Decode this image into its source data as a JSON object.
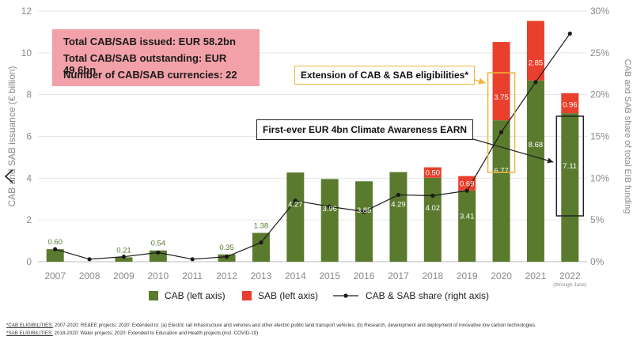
{
  "summary": {
    "line1": "Total CAB/SAB issued: EUR 58.2bn",
    "line2": "Total CAB/SAB outstanding: EUR 49.6bn",
    "line3": "Number of CAB/SAB currencies: 22"
  },
  "annotations": {
    "extension": "Extension of CAB & SAB eligibilities*",
    "earn": "First-ever EUR 4bn Climate Awareness EARN"
  },
  "legend": {
    "cab": "CAB (left axis)",
    "sab": "SAB (left axis)",
    "share": "CAB & SAB share (right axis)"
  },
  "footnotes": {
    "cab_label": "*CAB ELIGIBILITIES:",
    "cab_text": " 2007-2020: RE&EE projects; 2020: Extended to: (a) Electric rail infrastructure and vehicles and other electric public land transport vehicles, (b) Research, development and deployment of innovative low carbon technologies.",
    "sab_label": "*SAB ELIGIBILITIES:",
    "sab_text": " 2018-2020: Water projects; 2020: Extended to Education and Health projects (incl. COVID-19)"
  },
  "colors": {
    "cab": "#5a7a2e",
    "sab": "#e8402c",
    "line": "#1a1a1a",
    "summary_bg": "#f2a1a8",
    "extension_border": "#f0b43a"
  },
  "chart_data": {
    "type": "bar",
    "categories": [
      "2007",
      "2008",
      "2009",
      "2010",
      "2011",
      "2012",
      "2013",
      "2014",
      "2015",
      "2016",
      "2017",
      "2018",
      "2019",
      "2020",
      "2021",
      "2022"
    ],
    "category_note": {
      "2022": "(through June)"
    },
    "series": [
      {
        "name": "CAB (left axis)",
        "axis": "left",
        "values": [
          0.6,
          0,
          0.21,
          0.54,
          0,
          0.35,
          1.38,
          4.27,
          3.96,
          3.85,
          4.29,
          4.02,
          3.41,
          6.77,
          8.68,
          7.11
        ],
        "labels": [
          "0.60",
          "",
          "0.21",
          "0.54",
          "",
          "0.35",
          "1.38",
          "4.27",
          "3.96",
          "3.85",
          "4.29",
          "4.02",
          "3.41",
          "6.77",
          "8.68",
          "7.11"
        ]
      },
      {
        "name": "SAB (left axis)",
        "axis": "left",
        "values": [
          0,
          0,
          0,
          0,
          0,
          0,
          0,
          0,
          0,
          0,
          0,
          0.5,
          0.69,
          3.75,
          2.85,
          0.96
        ],
        "labels": [
          "",
          "",
          "",
          "",
          "",
          "",
          "",
          "",
          "",
          "",
          "",
          "0.50",
          "0.69",
          "3.75",
          "2.85",
          "0.96"
        ]
      },
      {
        "name": "CAB & SAB share (right axis)",
        "axis": "right",
        "type": "line",
        "values": [
          1.5,
          0.3,
          0.6,
          1.1,
          0.3,
          0.6,
          2.3,
          7.3,
          6.6,
          6.0,
          8.0,
          7.9,
          8.5,
          15.5,
          21.5,
          27.3
        ]
      }
    ],
    "ylabel": "CAB and SAB issuance (€ billion)",
    "y2label": "CAB and SAB share of total EIB funding",
    "ylim": [
      0,
      12
    ],
    "yticks": [
      "0",
      "2",
      "4",
      "6",
      "8",
      "10",
      "12"
    ],
    "y2lim": [
      0,
      30
    ],
    "y2ticks": [
      "0%",
      "5%",
      "10%",
      "15%",
      "20%",
      "25%",
      "30%"
    ]
  }
}
